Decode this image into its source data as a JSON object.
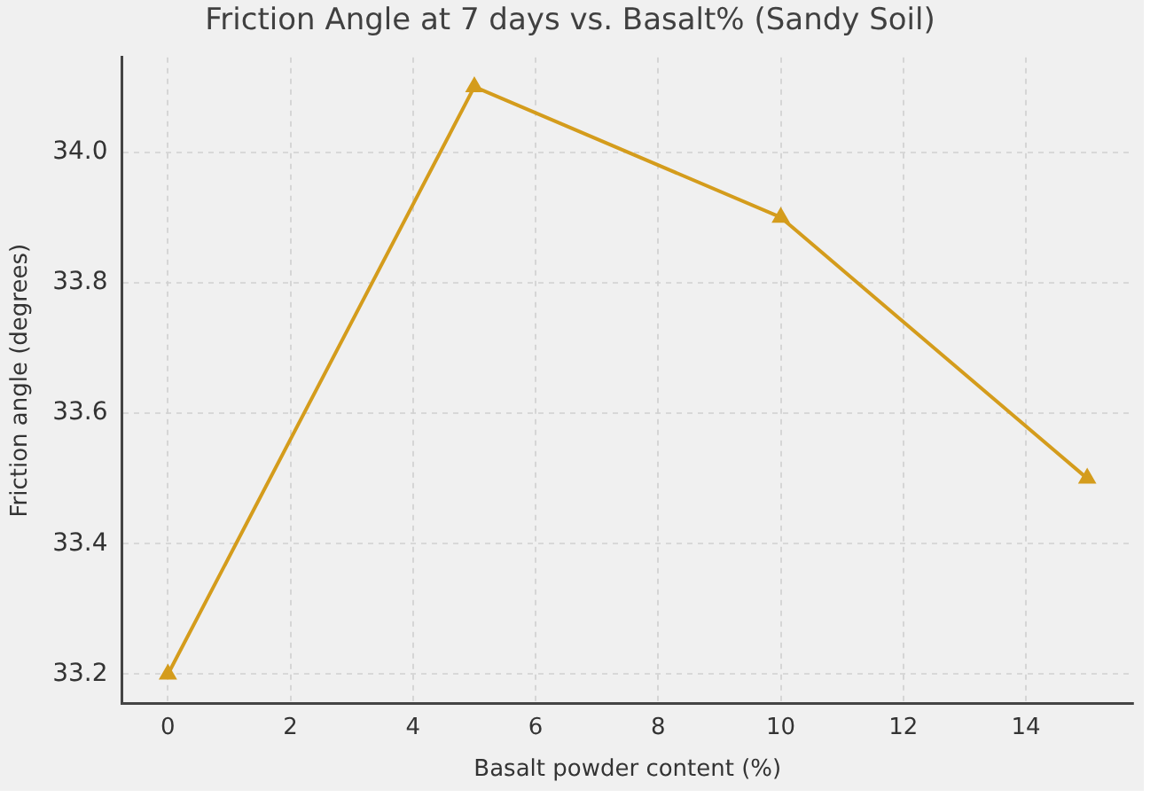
{
  "chart_data": {
    "type": "line",
    "title": "Friction Angle at 7 days vs. Basalt% (Sandy Soil)",
    "xlabel": "Basalt powder content (%)",
    "ylabel": "Friction angle (degrees)",
    "x": [
      0,
      5,
      10,
      15
    ],
    "series": [
      {
        "color": "#d49c1c",
        "values": [
          33.2,
          34.1,
          33.9,
          33.5
        ]
      }
    ],
    "xlim": [
      -0.75,
      15.75
    ],
    "xticks": [
      0,
      2,
      4,
      6,
      8,
      10,
      12,
      14
    ],
    "ylim": [
      33.155,
      34.145
    ],
    "yticks": [
      {
        "value": 33.2,
        "label": "33.2"
      },
      {
        "value": 33.4,
        "label": "33.4"
      },
      {
        "value": 33.6,
        "label": "33.6"
      },
      {
        "value": 33.8,
        "label": "33.8"
      },
      {
        "value": 34.0,
        "label": "34.0"
      }
    ],
    "grid": true,
    "legend": false,
    "marker": "triangle",
    "line_style": "solid"
  }
}
